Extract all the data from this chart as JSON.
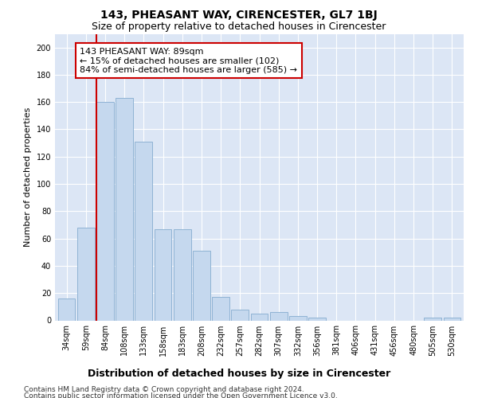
{
  "title": "143, PHEASANT WAY, CIRENCESTER, GL7 1BJ",
  "subtitle": "Size of property relative to detached houses in Cirencester",
  "xlabel": "Distribution of detached houses by size in Cirencester",
  "ylabel": "Number of detached properties",
  "categories": [
    "34sqm",
    "59sqm",
    "84sqm",
    "108sqm",
    "133sqm",
    "158sqm",
    "183sqm",
    "208sqm",
    "232sqm",
    "257sqm",
    "282sqm",
    "307sqm",
    "332sqm",
    "356sqm",
    "381sqm",
    "406sqm",
    "431sqm",
    "456sqm",
    "480sqm",
    "505sqm",
    "530sqm"
  ],
  "values": [
    16,
    68,
    160,
    163,
    131,
    67,
    67,
    51,
    17,
    8,
    5,
    6,
    3,
    2,
    0,
    0,
    0,
    0,
    0,
    2,
    2
  ],
  "bar_color": "#c5d8ee",
  "bar_edge_color": "#8fb3d4",
  "vline_color": "#cc0000",
  "annotation_text": "143 PHEASANT WAY: 89sqm\n← 15% of detached houses are smaller (102)\n84% of semi-detached houses are larger (585) →",
  "annotation_box_color": "#cc0000",
  "ylim": [
    0,
    210
  ],
  "yticks": [
    0,
    20,
    40,
    60,
    80,
    100,
    120,
    140,
    160,
    180,
    200
  ],
  "plot_bg_color": "#dce6f5",
  "grid_color": "#ffffff",
  "footer_line1": "Contains HM Land Registry data © Crown copyright and database right 2024.",
  "footer_line2": "Contains public sector information licensed under the Open Government Licence v3.0.",
  "title_fontsize": 10,
  "subtitle_fontsize": 9,
  "xlabel_fontsize": 9,
  "ylabel_fontsize": 8,
  "tick_fontsize": 7,
  "footer_fontsize": 6.5,
  "ann_fontsize": 8
}
